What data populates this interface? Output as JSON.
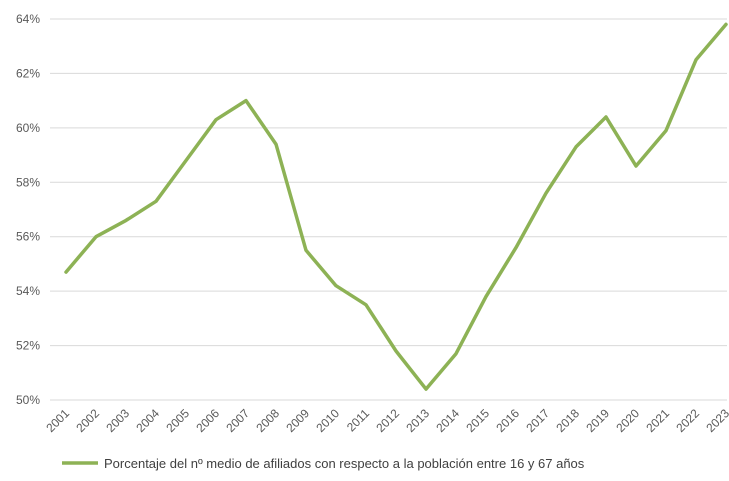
{
  "chart_data": {
    "type": "line",
    "title": "",
    "xlabel": "",
    "ylabel": "",
    "x": [
      "2001",
      "2002",
      "2003",
      "2004",
      "2005",
      "2006",
      "2007",
      "2008",
      "2009",
      "2010",
      "2011",
      "2012",
      "2013",
      "2014",
      "2015",
      "2016",
      "2017",
      "2018",
      "2019",
      "2020",
      "2021",
      "2022",
      "2023"
    ],
    "series": [
      {
        "name": "Porcentaje del nº medio de afiliados con respecto a la población entre 16 y 67 años",
        "color": "#8DB255",
        "values": [
          54.7,
          56.0,
          56.6,
          57.3,
          58.8,
          60.3,
          61.0,
          59.4,
          55.5,
          54.2,
          53.5,
          51.8,
          50.4,
          51.7,
          53.8,
          55.6,
          57.6,
          59.3,
          60.4,
          58.6,
          59.9,
          62.5,
          63.8
        ]
      }
    ],
    "ylim": [
      50,
      64
    ],
    "yticks": [
      50,
      52,
      54,
      56,
      58,
      60,
      62,
      64
    ],
    "ytick_labels": [
      "50%",
      "52%",
      "54%",
      "56%",
      "58%",
      "60%",
      "62%",
      "64%"
    ],
    "grid": true,
    "legend": "bottom"
  }
}
